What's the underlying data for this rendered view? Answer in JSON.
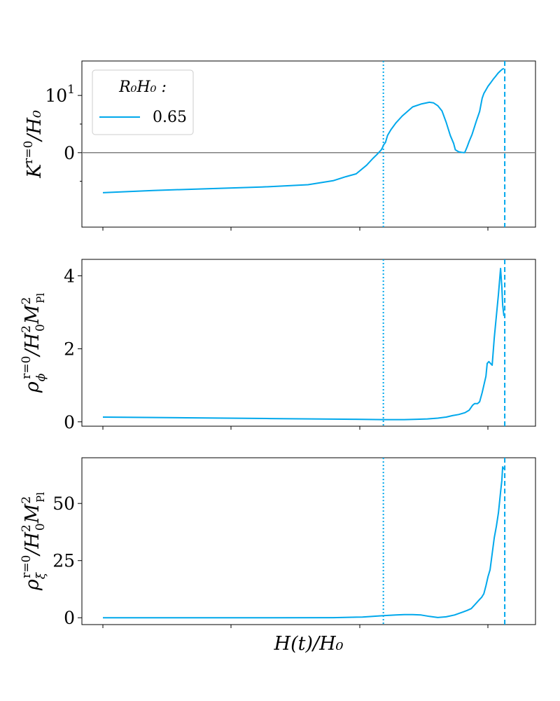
{
  "chart_data": [
    {
      "type": "line",
      "ylabel": "K^{r=0} / H₀",
      "ylabel_parts": {
        "base": "K",
        "sup": "r=0",
        "tail": "/H₀"
      },
      "yscale": "symlog",
      "ylim": [
        -20,
        40
      ],
      "yticks": [
        {
          "value": 0,
          "label": "0"
        },
        {
          "value": 10,
          "label": "10¹"
        }
      ],
      "minor_yticks": [
        -5,
        5
      ],
      "hline": {
        "value": 0,
        "color": "#808080"
      },
      "vlines": [
        {
          "x": 0.67,
          "style": "dotted"
        },
        {
          "x": 0.96,
          "style": "dashed"
        }
      ],
      "legend": {
        "title": "R₀H₀ :",
        "entries": [
          {
            "label": "0.65",
            "color": "#00a8ec"
          }
        ],
        "loc": "upper left"
      },
      "series": [
        {
          "name": "0.65",
          "color": "#00a8ec",
          "x": [
            0,
            0.12,
            0.25,
            0.38,
            0.49,
            0.55,
            0.58,
            0.605,
            0.63,
            0.645,
            0.655,
            0.665,
            0.668,
            0.67,
            0.675,
            0.68,
            0.688,
            0.7,
            0.715,
            0.74,
            0.76,
            0.78,
            0.79,
            0.8,
            0.81,
            0.82,
            0.83,
            0.838,
            0.842,
            0.85,
            0.857,
            0.863,
            0.865,
            0.87,
            0.875,
            0.882,
            0.892,
            0.9,
            0.906,
            0.91,
            0.915,
            0.92,
            0.926,
            0.932,
            0.938,
            0.944,
            0.95,
            0.955,
            0.958
          ],
          "y": [
            -7.0,
            -6.6,
            -6.3,
            -6.0,
            -5.6,
            -4.9,
            -4.2,
            -3.7,
            -2.2,
            -1.0,
            -0.3,
            0.5,
            0.9,
            1.3,
            1.8,
            3.0,
            4.0,
            5.2,
            6.4,
            8.0,
            8.5,
            8.8,
            8.7,
            8.2,
            7.3,
            5.3,
            3.0,
            1.6,
            0.5,
            0.15,
            0.05,
            0.0,
            0.12,
            1.0,
            2.0,
            3.2,
            5.5,
            7.2,
            9.5,
            10.8,
            12.5,
            14.5,
            16.5,
            19.0,
            21.5,
            24.5,
            27.0,
            29.0,
            29.5
          ]
        }
      ]
    },
    {
      "type": "line",
      "ylabel": "ρ_φ^{r=0} / H₀² M_Pl²",
      "ylabel_parts": {
        "base": "ρ",
        "sub": "ϕ",
        "sup": "r=0",
        "tail": "/H",
        "tail_sub": "0",
        "tail_sup": "2",
        "tail2": "M",
        "tail2_sub": "Pl",
        "tail2_sup": "2"
      },
      "ylim": [
        -0.12,
        4.45
      ],
      "yticks": [
        {
          "value": 0,
          "label": "0"
        },
        {
          "value": 2,
          "label": "2"
        },
        {
          "value": 4,
          "label": "4"
        }
      ],
      "vlines": [
        {
          "x": 0.67,
          "style": "dotted"
        },
        {
          "x": 0.96,
          "style": "dashed"
        }
      ],
      "series": [
        {
          "name": "0.65",
          "color": "#00a8ec",
          "x": [
            0,
            0.2,
            0.4,
            0.6,
            0.67,
            0.72,
            0.75,
            0.775,
            0.8,
            0.82,
            0.835,
            0.85,
            0.865,
            0.875,
            0.883,
            0.888,
            0.895,
            0.9,
            0.906,
            0.91,
            0.915,
            0.918,
            0.922,
            0.926,
            0.93,
            0.935,
            0.94,
            0.945,
            0.95,
            0.953,
            0.955,
            0.958
          ],
          "y": [
            0.13,
            0.11,
            0.09,
            0.07,
            0.06,
            0.06,
            0.07,
            0.08,
            0.1,
            0.13,
            0.17,
            0.2,
            0.25,
            0.32,
            0.45,
            0.5,
            0.5,
            0.55,
            0.8,
            1.0,
            1.25,
            1.6,
            1.65,
            1.6,
            1.55,
            2.3,
            2.9,
            3.5,
            4.2,
            3.7,
            3.2,
            2.9
          ]
        }
      ]
    },
    {
      "type": "line",
      "ylabel": "ρ_ξ^{r=0} / H₀² M_Pl²",
      "ylabel_parts": {
        "base": "ρ",
        "sub": "ξ",
        "sup": "r=0",
        "tail": "/H",
        "tail_sub": "0",
        "tail_sup": "2",
        "tail2": "M",
        "tail2_sub": "Pl",
        "tail2_sup": "2"
      },
      "xlabel": "H(t)/H₀",
      "ylim": [
        -3,
        70
      ],
      "yticks": [
        {
          "value": 0,
          "label": "0"
        },
        {
          "value": 25,
          "label": "25"
        },
        {
          "value": 50,
          "label": "50"
        }
      ],
      "vlines": [
        {
          "x": 0.67,
          "style": "dotted"
        },
        {
          "x": 0.96,
          "style": "dashed"
        }
      ],
      "series": [
        {
          "name": "0.65",
          "color": "#00a8ec",
          "x": [
            0,
            0.2,
            0.4,
            0.55,
            0.62,
            0.67,
            0.7,
            0.72,
            0.74,
            0.76,
            0.78,
            0.8,
            0.82,
            0.84,
            0.86,
            0.87,
            0.88,
            0.89,
            0.9,
            0.905,
            0.91,
            0.915,
            0.92,
            0.925,
            0.93,
            0.935,
            0.94,
            0.945,
            0.95,
            0.953,
            0.955,
            0.958
          ],
          "y": [
            0,
            0,
            0,
            0.05,
            0.3,
            0.9,
            1.2,
            1.4,
            1.4,
            1.2,
            0.6,
            0.1,
            0.4,
            1.2,
            2.5,
            3.2,
            4.0,
            6.0,
            8.0,
            9.0,
            10.5,
            14.0,
            18.0,
            21.0,
            28.0,
            35.0,
            40.0,
            46.0,
            55.0,
            60.0,
            66.0,
            65.0
          ]
        }
      ]
    }
  ]
}
